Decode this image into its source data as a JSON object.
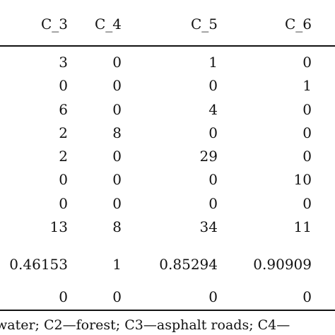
{
  "table": {
    "headers": [
      "C_3",
      "C_4",
      "C_5",
      "C_6"
    ],
    "rows": [
      [
        "3",
        "0",
        "1",
        "0"
      ],
      [
        "0",
        "0",
        "0",
        "1"
      ],
      [
        "6",
        "0",
        "4",
        "0"
      ],
      [
        "2",
        "8",
        "0",
        "0"
      ],
      [
        "2",
        "0",
        "29",
        "0"
      ],
      [
        "0",
        "0",
        "0",
        "10"
      ],
      [
        "0",
        "0",
        "0",
        "0"
      ],
      [
        "13",
        "8",
        "34",
        "11"
      ],
      [
        "0.46153",
        "1",
        "0.85294",
        "0.90909"
      ],
      [
        "0",
        "0",
        "0",
        "0"
      ]
    ]
  },
  "caption": "water; C2—forest; C3—asphalt roads; C4—"
}
